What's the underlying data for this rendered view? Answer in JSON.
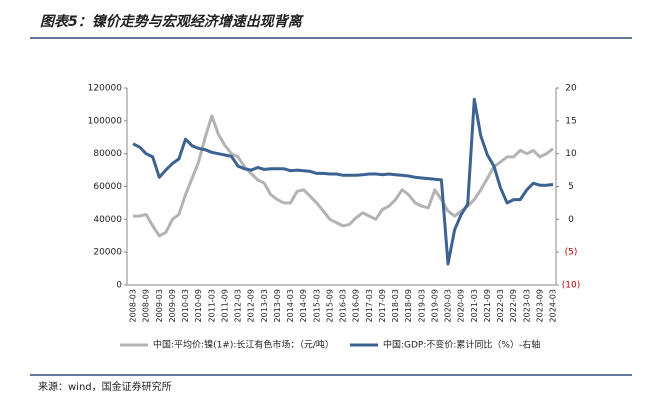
{
  "title": "图表5：镍价走势与宏观经济增速出现背离",
  "source": "来源：wind，国金证券研究所",
  "chart_data": {
    "type": "line",
    "categories": [
      "2008-03",
      null,
      "2008-09",
      null,
      "2009-03",
      null,
      "2009-09",
      null,
      "2010-03",
      null,
      "2010-09",
      null,
      "2011-03",
      null,
      "2011-09",
      null,
      "2012-03",
      null,
      "2012-09",
      null,
      "2013-03",
      null,
      "2013-09",
      null,
      "2014-03",
      null,
      "2014-09",
      null,
      "2015-03",
      null,
      "2015-09",
      null,
      "2016-03",
      null,
      "2016-09",
      null,
      "2017-03",
      null,
      "2017-09",
      null,
      "2018-03",
      null,
      "2018-09",
      null,
      "2019-03",
      null,
      "2019-09",
      null,
      "2020-03",
      null,
      "2020-09",
      null,
      "2021-03",
      null,
      "2021-09",
      null,
      "2022-03",
      null,
      "2022-09",
      null,
      "2023-03",
      null,
      "2023-09",
      null,
      "2024-03"
    ],
    "series": [
      {
        "name": "中国:平均价:镍(1#):长江有色市场：（元/吨）",
        "color": "#b3b3b3",
        "values": [
          42000,
          42000,
          43000,
          36000,
          30000,
          32000,
          40000,
          43000,
          55000,
          65000,
          75000,
          90000,
          103000,
          92000,
          85000,
          80000,
          78000,
          72000,
          68000,
          64000,
          62000,
          55000,
          52000,
          50000,
          50000,
          57000,
          58000,
          54000,
          50000,
          45000,
          40000,
          38000,
          36000,
          37000,
          41000,
          44000,
          42000,
          40000,
          46000,
          48000,
          52000,
          58000,
          55000,
          50000,
          48000,
          47000,
          58000,
          52000,
          45000,
          42000,
          45000,
          48000,
          52000,
          58000,
          65000,
          72000,
          75000,
          78000,
          78000,
          82000,
          80000,
          82000,
          78000,
          80000,
          83000
        ]
      },
      {
        "name": "中国:GDP:不变价:累计同比（%）-右轴",
        "color": "#3b6290",
        "axis": "y2",
        "values": [
          11.5,
          11.0,
          10.0,
          9.5,
          6.4,
          7.5,
          8.5,
          9.2,
          12.2,
          11.2,
          10.8,
          10.6,
          10.2,
          10.0,
          9.8,
          9.6,
          8.1,
          7.7,
          7.5,
          7.9,
          7.6,
          7.7,
          7.7,
          7.7,
          7.4,
          7.5,
          7.4,
          7.3,
          7.0,
          7.0,
          6.9,
          6.9,
          6.7,
          6.7,
          6.7,
          6.8,
          6.9,
          6.9,
          6.8,
          6.9,
          6.8,
          6.7,
          6.6,
          6.4,
          6.3,
          6.2,
          6.1,
          6.0,
          -6.8,
          -1.6,
          0.7,
          2.3,
          18.3,
          12.7,
          9.8,
          8.1,
          4.8,
          2.5,
          3.0,
          3.0,
          4.5,
          5.5,
          5.2,
          5.2,
          5.3
        ]
      }
    ],
    "ylim": [
      0,
      120000
    ],
    "yticks": [
      0,
      20000,
      40000,
      60000,
      80000,
      100000,
      120000
    ],
    "y2lim": [
      -10,
      20
    ],
    "y2ticks": [
      {
        "value": -10,
        "label": "(10)"
      },
      {
        "value": -5,
        "label": "(5)"
      },
      0,
      5,
      10,
      15,
      20
    ],
    "negative_tick_color": "#c00000"
  }
}
